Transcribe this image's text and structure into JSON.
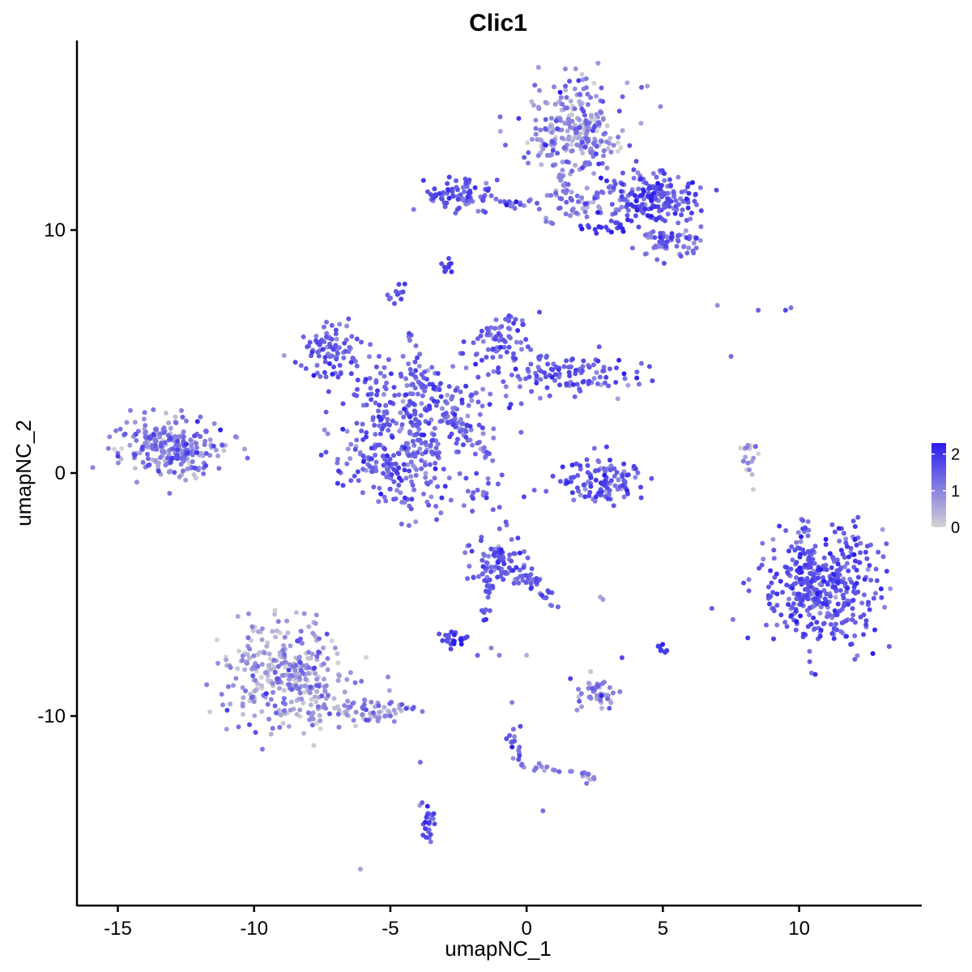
{
  "chart_data": {
    "type": "scatter",
    "title": "Clic1",
    "xlabel": "umapNC_1",
    "ylabel": "umapNC_2",
    "xlim": [
      -16.5,
      14.5
    ],
    "ylim": [
      -17.8,
      17.8
    ],
    "x_ticks": [
      -15,
      -10,
      -5,
      0,
      5,
      10
    ],
    "x_tick_labels": [
      "-15",
      "-10",
      "-5",
      "0",
      "5",
      "10"
    ],
    "y_ticks": [
      -10,
      0,
      10
    ],
    "y_tick_labels": [
      "-10",
      "0",
      "10"
    ],
    "grid": false,
    "color_scale": {
      "low_color": "#d3d3d3",
      "high_color": "#2a1cf0",
      "min": 0,
      "max": 2.3,
      "legend_ticks": [
        0,
        1,
        2
      ],
      "legend_labels": [
        "0",
        "1",
        "2"
      ],
      "legend_position": "right"
    },
    "clusters": [
      {
        "cx": 1.8,
        "cy": 14.2,
        "sx": 0.9,
        "sy": 0.9,
        "n": 260,
        "expr": 0.9,
        "spread_expr": 0.5
      },
      {
        "cx": 4.5,
        "cy": 11.3,
        "sx": 1.0,
        "sy": 0.55,
        "n": 200,
        "expr": 1.5,
        "spread_expr": 0.4
      },
      {
        "cx": 5.3,
        "cy": 9.6,
        "sx": 0.5,
        "sy": 0.35,
        "n": 70,
        "expr": 1.2,
        "spread_expr": 0.4
      },
      {
        "cx": -2.5,
        "cy": 11.5,
        "sx": 0.7,
        "sy": 0.35,
        "n": 70,
        "expr": 1.5,
        "spread_expr": 0.3
      },
      {
        "cx": 1.8,
        "cy": 11.0,
        "sx": 0.8,
        "sy": 0.4,
        "n": 50,
        "expr": 1.1,
        "spread_expr": 0.4
      },
      {
        "cx": 2.8,
        "cy": 10.1,
        "sx": 0.5,
        "sy": 0.12,
        "n": 20,
        "expr": 1.9,
        "spread_expr": 0.2
      },
      {
        "cx": -2.9,
        "cy": 8.5,
        "sx": 0.12,
        "sy": 0.18,
        "n": 10,
        "expr": 1.9,
        "spread_expr": 0.2
      },
      {
        "cx": -4.7,
        "cy": 7.3,
        "sx": 0.2,
        "sy": 0.25,
        "n": 12,
        "expr": 1.5,
        "spread_expr": 0.3
      },
      {
        "cx": -7.1,
        "cy": 5.0,
        "sx": 0.6,
        "sy": 0.6,
        "n": 90,
        "expr": 1.5,
        "spread_expr": 0.3
      },
      {
        "cx": -1.0,
        "cy": 5.5,
        "sx": 0.6,
        "sy": 0.6,
        "n": 70,
        "expr": 1.4,
        "spread_expr": 0.3
      },
      {
        "cx": 1.5,
        "cy": 4.1,
        "sx": 1.2,
        "sy": 0.4,
        "n": 110,
        "expr": 1.5,
        "spread_expr": 0.3
      },
      {
        "cx": -3.5,
        "cy": 3.0,
        "sx": 1.5,
        "sy": 0.7,
        "n": 180,
        "expr": 1.4,
        "spread_expr": 0.35
      },
      {
        "cx": -4.6,
        "cy": 0.6,
        "sx": 1.2,
        "sy": 1.0,
        "n": 240,
        "expr": 1.4,
        "spread_expr": 0.35
      },
      {
        "cx": -1.8,
        "cy": -0.8,
        "sx": 0.7,
        "sy": 0.4,
        "n": 25,
        "expr": 1.4,
        "spread_expr": 0.3
      },
      {
        "cx": -13.0,
        "cy": 1.1,
        "sx": 1.0,
        "sy": 0.6,
        "n": 250,
        "expr": 1.0,
        "spread_expr": 0.45
      },
      {
        "cx": 2.8,
        "cy": -0.3,
        "sx": 0.8,
        "sy": 0.5,
        "n": 110,
        "expr": 1.5,
        "spread_expr": 0.35
      },
      {
        "cx": 8.2,
        "cy": 0.5,
        "sx": 0.15,
        "sy": 0.35,
        "n": 18,
        "expr": 0.4,
        "spread_expr": 0.4
      },
      {
        "cx": 10.8,
        "cy": -4.7,
        "sx": 1.1,
        "sy": 1.2,
        "n": 420,
        "expr": 1.5,
        "spread_expr": 0.35
      },
      {
        "cx": -1.0,
        "cy": -3.7,
        "sx": 0.5,
        "sy": 0.55,
        "n": 90,
        "expr": 1.4,
        "spread_expr": 0.35
      },
      {
        "cx": -2.6,
        "cy": -6.9,
        "sx": 0.25,
        "sy": 0.2,
        "n": 25,
        "expr": 1.8,
        "spread_expr": 0.3
      },
      {
        "cx": -8.8,
        "cy": -8.5,
        "sx": 1.1,
        "sy": 1.1,
        "n": 330,
        "expr": 0.7,
        "spread_expr": 0.5
      },
      {
        "cx": -5.8,
        "cy": -9.8,
        "sx": 0.9,
        "sy": 0.3,
        "n": 70,
        "expr": 0.8,
        "spread_expr": 0.45
      },
      {
        "cx": 2.6,
        "cy": -9.1,
        "sx": 0.4,
        "sy": 0.35,
        "n": 45,
        "expr": 0.9,
        "spread_expr": 0.45
      },
      {
        "cx": 5.0,
        "cy": -7.2,
        "sx": 0.08,
        "sy": 0.15,
        "n": 8,
        "expr": 1.8,
        "spread_expr": 0.2
      },
      {
        "cx": -3.6,
        "cy": -14.5,
        "sx": 0.15,
        "sy": 0.5,
        "n": 25,
        "expr": 1.5,
        "spread_expr": 0.3
      },
      {
        "cx": 2.3,
        "cy": -12.5,
        "sx": 0.2,
        "sy": 0.12,
        "n": 10,
        "expr": 0.7,
        "spread_expr": 0.4
      }
    ],
    "segments": [
      {
        "from": [
          -0.5,
          -3.8
        ],
        "to": [
          1.1,
          -5.4
        ],
        "n": 30,
        "w": 0.12,
        "expr": 1.4
      },
      {
        "from": [
          -1.3,
          -4.2
        ],
        "to": [
          -1.6,
          -6.1
        ],
        "n": 18,
        "w": 0.1,
        "expr": 1.4
      },
      {
        "from": [
          -0.6,
          -9.5
        ],
        "to": [
          -0.2,
          -12.2
        ],
        "n": 18,
        "w": 0.12,
        "expr": 1.3
      },
      {
        "from": [
          -0.2,
          -12.0
        ],
        "to": [
          2.2,
          -12.4
        ],
        "n": 14,
        "w": 0.08,
        "expr": 1.1
      },
      {
        "from": [
          -3.0,
          2.4
        ],
        "to": [
          -1.3,
          0.6
        ],
        "n": 28,
        "w": 0.1,
        "expr": 1.3
      },
      {
        "from": [
          -2.4,
          11.3
        ],
        "to": [
          0.5,
          11.0
        ],
        "n": 22,
        "w": 0.08,
        "expr": 1.4
      },
      {
        "from": [
          -4.2,
          5.8
        ],
        "to": [
          -4.0,
          3.8
        ],
        "n": 12,
        "w": 0.15,
        "expr": 1.5
      },
      {
        "from": [
          -5.8,
          2.6
        ],
        "to": [
          -5.0,
          4.6
        ],
        "n": 12,
        "w": 0.15,
        "expr": 1.5
      },
      {
        "from": [
          1.2,
          13.0
        ],
        "to": [
          1.5,
          11.4
        ],
        "n": 14,
        "w": 0.12,
        "expr": 1.0
      }
    ],
    "singles": [
      [
        7.0,
        6.9
      ],
      [
        7.5,
        4.8
      ],
      [
        8.5,
        6.7
      ],
      [
        9.5,
        6.7
      ],
      [
        9.7,
        6.8
      ],
      [
        -1.0,
        -7.5
      ],
      [
        -1.3,
        -7.2
      ],
      [
        0.0,
        -7.5
      ],
      [
        0.6,
        -13.9
      ],
      [
        -6.1,
        -16.3
      ],
      [
        -3.9,
        -11.9
      ],
      [
        2.7,
        -5.1
      ],
      [
        2.8,
        -5.2
      ],
      [
        3.5,
        -7.6
      ],
      [
        -1.8,
        -7.5
      ]
    ]
  }
}
